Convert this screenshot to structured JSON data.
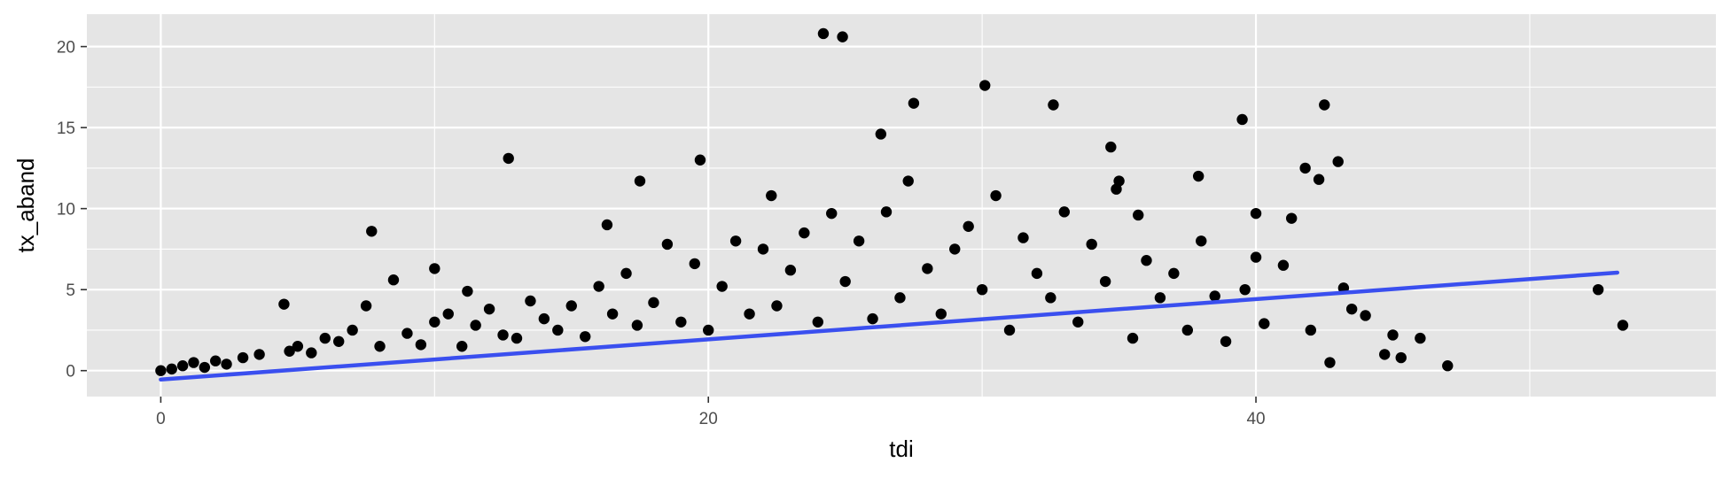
{
  "chart_data": {
    "type": "scatter",
    "title": "",
    "xlabel": "tdi",
    "ylabel": "tx_aband",
    "xlim": [
      -2.7,
      56.8
    ],
    "ylim": [
      -1.6,
      22.0
    ],
    "x_ticks": [
      0,
      20,
      40
    ],
    "x_minor_ticks": [
      10,
      30,
      50
    ],
    "y_ticks": [
      0,
      5,
      10,
      15,
      20
    ],
    "y_minor_ticks": [
      2.5,
      7.5,
      12.5,
      17.5
    ],
    "grid": true,
    "legend": "none",
    "colors": {
      "panel": "#e5e5e5",
      "grid": "#ffffff",
      "points": "#000000",
      "fit_line": "#3a4fef"
    },
    "fit_line": {
      "x": [
        0,
        53.2
      ],
      "y": [
        -0.55,
        6.05
      ]
    },
    "points": {
      "x": [
        0,
        0.4,
        0.8,
        1.2,
        1.6,
        2.0,
        2.4,
        3.0,
        3.6,
        4.5,
        4.7,
        5.0,
        5.5,
        6.0,
        6.5,
        7.0,
        7.5,
        7.7,
        8.0,
        8.5,
        9.0,
        9.5,
        10.0,
        10.0,
        10.5,
        11.0,
        11.5,
        11.2,
        12.0,
        12.5,
        12.7,
        13.0,
        13.5,
        14.0,
        14.5,
        15.0,
        15.5,
        16.0,
        16.3,
        16.5,
        17.0,
        17.5,
        17.4,
        18.0,
        18.5,
        19.0,
        19.5,
        19.7,
        20.0,
        20.5,
        21.0,
        21.5,
        22.0,
        22.3,
        22.5,
        23.0,
        23.5,
        24.0,
        24.2,
        24.5,
        24.9,
        25.0,
        25.5,
        26.0,
        26.3,
        26.5,
        27.0,
        27.3,
        27.5,
        28.0,
        28.5,
        29.0,
        29.5,
        30.0,
        30.1,
        30.5,
        31.0,
        31.5,
        32.0,
        32.5,
        32.6,
        33.0,
        33.5,
        34.0,
        34.5,
        34.7,
        34.9,
        35.0,
        35.5,
        35.7,
        36.0,
        36.5,
        37.0,
        37.5,
        37.9,
        38.0,
        38.5,
        38.9,
        39.5,
        39.6,
        40.0,
        40.3,
        40.0,
        41.0,
        41.3,
        41.8,
        42.0,
        42.3,
        42.5,
        42.7,
        43.0,
        43.2,
        43.5,
        44.0,
        44.7,
        45.0,
        45.3,
        46.0,
        47.0,
        52.5,
        53.4
      ],
      "y": [
        0,
        0.1,
        0.3,
        0.5,
        0.2,
        0.6,
        0.4,
        0.8,
        1.0,
        4.1,
        1.2,
        1.5,
        1.1,
        2.0,
        1.8,
        2.5,
        4.0,
        8.6,
        1.5,
        5.6,
        2.3,
        1.6,
        6.3,
        3.0,
        3.5,
        1.5,
        2.8,
        4.9,
        3.8,
        2.2,
        13.1,
        2.0,
        4.3,
        3.2,
        2.5,
        4.0,
        2.1,
        5.2,
        9.0,
        3.5,
        6.0,
        11.7,
        2.8,
        4.2,
        7.8,
        3.0,
        6.6,
        13.0,
        2.5,
        5.2,
        8.0,
        3.5,
        7.5,
        10.8,
        4.0,
        6.2,
        8.5,
        3.0,
        20.8,
        9.7,
        20.6,
        5.5,
        8.0,
        3.2,
        14.6,
        9.8,
        4.5,
        11.7,
        16.5,
        6.3,
        3.5,
        7.5,
        8.9,
        5.0,
        17.6,
        10.8,
        2.5,
        8.2,
        6.0,
        4.5,
        16.4,
        9.8,
        3.0,
        7.8,
        5.5,
        13.8,
        11.2,
        11.7,
        2.0,
        9.6,
        6.8,
        4.5,
        6.0,
        2.5,
        12.0,
        8.0,
        4.6,
        1.8,
        15.5,
        5.0,
        9.7,
        2.9,
        7.0,
        6.5,
        9.4,
        12.5,
        2.5,
        11.8,
        16.4,
        0.5,
        12.9,
        5.1,
        3.8,
        3.4,
        1.0,
        2.2,
        0.8,
        2.0,
        0.3,
        5.0,
        2.8
      ]
    }
  }
}
